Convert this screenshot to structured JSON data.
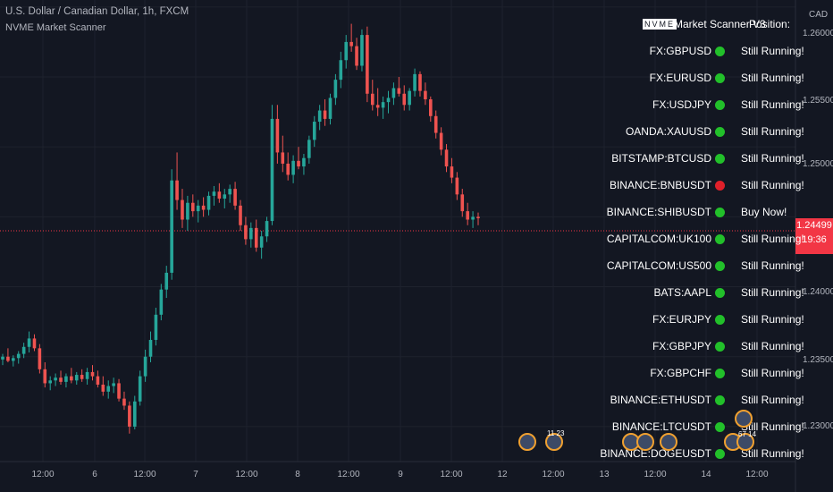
{
  "header": {
    "symbol_line": "U.S. Dollar / Canadian Dollar, 1h, FXCM",
    "indicator_name": "NVME Market Scanner"
  },
  "price_axis": {
    "currency": "CAD",
    "ticks": [
      "1.26000",
      "1.25500",
      "1.25000",
      "1.24000",
      "1.23500",
      "1.23000"
    ],
    "current_price": "1.24499",
    "countdown": "19:36"
  },
  "time_axis": {
    "ticks": [
      "12:00",
      "6",
      "12:00",
      "7",
      "12:00",
      "8",
      "12:00",
      "9",
      "12:00",
      "12",
      "12:00",
      "13",
      "12:00",
      "14",
      "12:00"
    ]
  },
  "scanner": {
    "badge": "NVME",
    "title": "Market Scanner V3",
    "position_header": "Position:",
    "rows": [
      {
        "symbol": "FX:GBPUSD",
        "status": "Still Running!",
        "color": "#22c02a"
      },
      {
        "symbol": "FX:EURUSD",
        "status": "Still Running!",
        "color": "#22c02a"
      },
      {
        "symbol": "FX:USDJPY",
        "status": "Still Running!",
        "color": "#22c02a"
      },
      {
        "symbol": "OANDA:XAUUSD",
        "status": "Still Running!",
        "color": "#22c02a"
      },
      {
        "symbol": "BITSTAMP:BTCUSD",
        "status": "Still Running!",
        "color": "#22c02a"
      },
      {
        "symbol": "BINANCE:BNBUSDT",
        "status": "Still Running!",
        "color": "#e0202a"
      },
      {
        "symbol": "BINANCE:SHIBUSDT",
        "status": "Buy Now!",
        "color": "#22c02a"
      },
      {
        "symbol": "CAPITALCOM:UK100",
        "status": "Still Running!",
        "color": "#22c02a"
      },
      {
        "symbol": "CAPITALCOM:US500",
        "status": "Still Running!",
        "color": "#22c02a"
      },
      {
        "symbol": "BATS:AAPL",
        "status": "Still Running!",
        "color": "#22c02a"
      },
      {
        "symbol": "FX:EURJPY",
        "status": "Still Running!",
        "color": "#22c02a"
      },
      {
        "symbol": "FX:GBPJPY",
        "status": "Still Running!",
        "color": "#22c02a"
      },
      {
        "symbol": "FX:GBPCHF",
        "status": "Still Running!",
        "color": "#22c02a"
      },
      {
        "symbol": "BINANCE:ETHUSDT",
        "status": "Still Running!",
        "color": "#22c02a"
      },
      {
        "symbol": "BINANCE:LTCUSDT",
        "status": "Still Running!",
        "color": "#22c02a"
      },
      {
        "symbol": "BINANCE:DOGEUSDT",
        "status": "Still Running!",
        "color": "#22c02a"
      }
    ]
  },
  "events": {
    "labels": [
      "11 23",
      "67 14"
    ]
  },
  "colors": {
    "up": "#26a69a",
    "down": "#ef5350",
    "price_tag": "#f23645",
    "background": "#131722"
  },
  "chart_data": {
    "type": "candlestick",
    "y_range": [
      1.2275,
      1.2605
    ],
    "candles": [
      [
        1.2348,
        1.2352,
        1.2344,
        1.235
      ],
      [
        1.235,
        1.2356,
        1.2346,
        1.2347
      ],
      [
        1.2347,
        1.2351,
        1.2343,
        1.2349
      ],
      [
        1.2349,
        1.2354,
        1.2345,
        1.2352
      ],
      [
        1.2352,
        1.236,
        1.2349,
        1.2357
      ],
      [
        1.2357,
        1.2368,
        1.2353,
        1.2363
      ],
      [
        1.2363,
        1.2366,
        1.2354,
        1.2356
      ],
      [
        1.2356,
        1.2359,
        1.2338,
        1.2341
      ],
      [
        1.2341,
        1.2346,
        1.2328,
        1.2331
      ],
      [
        1.2331,
        1.2336,
        1.2326,
        1.2333
      ],
      [
        1.2333,
        1.2338,
        1.2329,
        1.2335
      ],
      [
        1.2335,
        1.234,
        1.233,
        1.2332
      ],
      [
        1.2332,
        1.2338,
        1.2328,
        1.2336
      ],
      [
        1.2336,
        1.2342,
        1.2331,
        1.2333
      ],
      [
        1.2333,
        1.2339,
        1.233,
        1.2337
      ],
      [
        1.2337,
        1.2341,
        1.2332,
        1.2334
      ],
      [
        1.2334,
        1.2342,
        1.233,
        1.2339
      ],
      [
        1.2339,
        1.2344,
        1.2333,
        1.2336
      ],
      [
        1.2336,
        1.234,
        1.2328,
        1.233
      ],
      [
        1.233,
        1.2336,
        1.2322,
        1.2325
      ],
      [
        1.2325,
        1.2333,
        1.232,
        1.2329
      ],
      [
        1.2329,
        1.2335,
        1.2324,
        1.2331
      ],
      [
        1.2331,
        1.2334,
        1.2318,
        1.232
      ],
      [
        1.232,
        1.2325,
        1.2312,
        1.2315
      ],
      [
        1.2315,
        1.2318,
        1.2295,
        1.23
      ],
      [
        1.23,
        1.2322,
        1.2298,
        1.2318
      ],
      [
        1.2318,
        1.234,
        1.2315,
        1.2336
      ],
      [
        1.2336,
        1.2355,
        1.2332,
        1.235
      ],
      [
        1.235,
        1.2368,
        1.2346,
        1.2362
      ],
      [
        1.2362,
        1.2385,
        1.2358,
        1.238
      ],
      [
        1.238,
        1.2402,
        1.2376,
        1.2398
      ],
      [
        1.2398,
        1.2415,
        1.2392,
        1.241
      ],
      [
        1.241,
        1.2484,
        1.2405,
        1.2476
      ],
      [
        1.2476,
        1.2496,
        1.2455,
        1.2462
      ],
      [
        1.2462,
        1.247,
        1.2442,
        1.2448
      ],
      [
        1.2448,
        1.2465,
        1.244,
        1.246
      ],
      [
        1.246,
        1.2466,
        1.245,
        1.2454
      ],
      [
        1.2454,
        1.2462,
        1.2446,
        1.2458
      ],
      [
        1.2458,
        1.2464,
        1.245,
        1.2455
      ],
      [
        1.2455,
        1.2468,
        1.2451,
        1.2465
      ],
      [
        1.2465,
        1.2472,
        1.2458,
        1.2468
      ],
      [
        1.2468,
        1.2474,
        1.246,
        1.2463
      ],
      [
        1.2463,
        1.247,
        1.2456,
        1.2466
      ],
      [
        1.2466,
        1.2473,
        1.246,
        1.247
      ],
      [
        1.247,
        1.2475,
        1.2455,
        1.2458
      ],
      [
        1.2458,
        1.2462,
        1.244,
        1.2444
      ],
      [
        1.2444,
        1.245,
        1.243,
        1.2434
      ],
      [
        1.2434,
        1.2446,
        1.2428,
        1.2442
      ],
      [
        1.2442,
        1.2448,
        1.2425,
        1.2428
      ],
      [
        1.2428,
        1.244,
        1.242,
        1.2436
      ],
      [
        1.2436,
        1.245,
        1.2432,
        1.2447
      ],
      [
        1.2447,
        1.253,
        1.2444,
        1.252
      ],
      [
        1.252,
        1.253,
        1.2488,
        1.2496
      ],
      [
        1.2496,
        1.2508,
        1.2482,
        1.2488
      ],
      [
        1.2488,
        1.2496,
        1.2476,
        1.248
      ],
      [
        1.248,
        1.2494,
        1.2474,
        1.249
      ],
      [
        1.249,
        1.25,
        1.2484,
        1.2486
      ],
      [
        1.2486,
        1.2495,
        1.248,
        1.2492
      ],
      [
        1.2492,
        1.2508,
        1.2488,
        1.2505
      ],
      [
        1.2505,
        1.2522,
        1.25,
        1.2518
      ],
      [
        1.2518,
        1.253,
        1.2512,
        1.2526
      ],
      [
        1.2526,
        1.2534,
        1.2515,
        1.252
      ],
      [
        1.252,
        1.2538,
        1.2516,
        1.2535
      ],
      [
        1.2535,
        1.2552,
        1.253,
        1.2548
      ],
      [
        1.2548,
        1.2568,
        1.2542,
        1.2562
      ],
      [
        1.2562,
        1.258,
        1.2556,
        1.2575
      ],
      [
        1.2575,
        1.2588,
        1.2568,
        1.2572
      ],
      [
        1.2572,
        1.2578,
        1.2555,
        1.2558
      ],
      [
        1.2558,
        1.2584,
        1.2554,
        1.258
      ],
      [
        1.258,
        1.2586,
        1.2532,
        1.2538
      ],
      [
        1.2538,
        1.2548,
        1.2526,
        1.253
      ],
      [
        1.253,
        1.2542,
        1.2522,
        1.2528
      ],
      [
        1.2528,
        1.2536,
        1.252,
        1.2532
      ],
      [
        1.2532,
        1.254,
        1.2524,
        1.2535
      ],
      [
        1.2535,
        1.2546,
        1.253,
        1.2542
      ],
      [
        1.2542,
        1.255,
        1.2536,
        1.2538
      ],
      [
        1.2538,
        1.2544,
        1.2526,
        1.253
      ],
      [
        1.253,
        1.2542,
        1.2526,
        1.254
      ],
      [
        1.254,
        1.2556,
        1.2536,
        1.2552
      ],
      [
        1.2552,
        1.2554,
        1.2536,
        1.254
      ],
      [
        1.254,
        1.2546,
        1.253,
        1.2534
      ],
      [
        1.2534,
        1.2536,
        1.2518,
        1.2522
      ],
      [
        1.2522,
        1.2526,
        1.2506,
        1.251
      ],
      [
        1.251,
        1.2514,
        1.2494,
        1.2498
      ],
      [
        1.2498,
        1.2502,
        1.2482,
        1.2486
      ],
      [
        1.2486,
        1.2492,
        1.2474,
        1.2478
      ],
      [
        1.2478,
        1.2482,
        1.2462,
        1.2466
      ],
      [
        1.2466,
        1.247,
        1.245,
        1.2454
      ],
      [
        1.2454,
        1.246,
        1.2444,
        1.2448
      ],
      [
        1.2448,
        1.2454,
        1.2442,
        1.245
      ],
      [
        1.245,
        1.2453,
        1.2444,
        1.2449
      ]
    ]
  }
}
